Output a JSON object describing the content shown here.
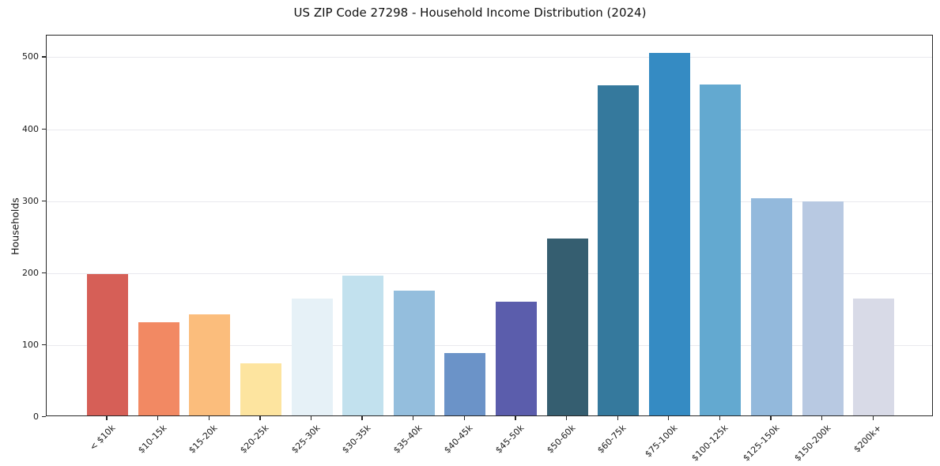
{
  "chart_data": {
    "type": "bar",
    "title": "US ZIP Code 27298 - Household Income Distribution (2024)",
    "xlabel": "",
    "ylabel": "Households",
    "categories": [
      "< $10k",
      "$10-15k",
      "$15-20k",
      "$20-25k",
      "$25-30k",
      "$30-35k",
      "$35-40k",
      "$40-45k",
      "$45-50k",
      "$50-60k",
      "$60-75k",
      "$75-100k",
      "$100-125k",
      "$125-150k",
      "$150-200k",
      "$200k+"
    ],
    "values": [
      196,
      129,
      140,
      72,
      162,
      194,
      173,
      87,
      158,
      246,
      459,
      504,
      460,
      302,
      297,
      163
    ],
    "bar_colors": [
      "#d65f57",
      "#f28963",
      "#fbbd7c",
      "#fde49f",
      "#e6f1f7",
      "#c2e1ee",
      "#94bedd",
      "#6b93c8",
      "#5b5dac",
      "#355e70",
      "#35799d",
      "#358bc3",
      "#63a9d0",
      "#93b9dc",
      "#b8c9e2",
      "#d8dae7"
    ],
    "yticks": [
      0,
      100,
      200,
      300,
      400,
      500
    ],
    "ytick_labels": [
      "0",
      "100",
      "200",
      "300",
      "400",
      "500"
    ],
    "ylim": [
      0,
      530
    ],
    "grid": "horizontal",
    "legend_position": "none",
    "axis_color": "#262626",
    "grid_color": "#e9e9ee",
    "background_color": "#ffffff"
  }
}
